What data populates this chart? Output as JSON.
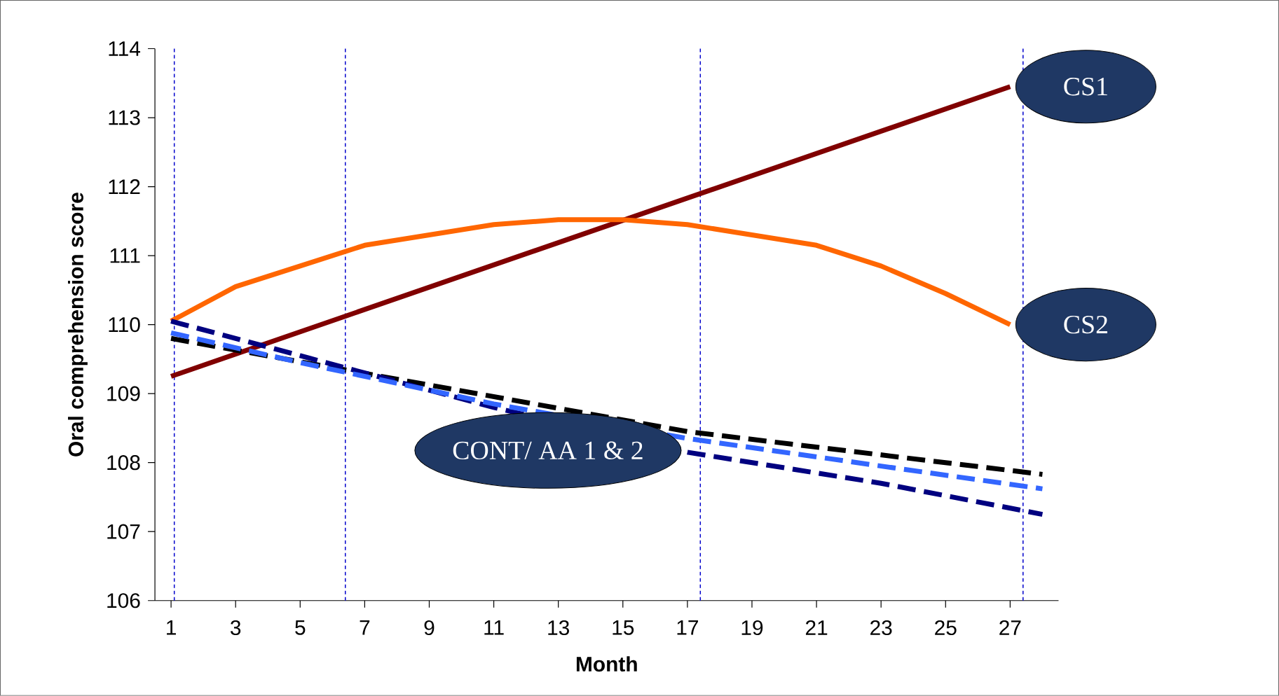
{
  "chart_data": {
    "type": "line",
    "xlabel": "Month",
    "ylabel": "Oral comprehension score",
    "xlim": [
      0.5,
      28.5
    ],
    "ylim": [
      106,
      114
    ],
    "xticks": [
      1,
      3,
      5,
      7,
      9,
      11,
      13,
      15,
      17,
      19,
      21,
      23,
      25,
      27
    ],
    "yticks": [
      106,
      107,
      108,
      109,
      110,
      111,
      112,
      113,
      114
    ],
    "grid": false,
    "line_style": "solid",
    "marker": "none",
    "series": [
      {
        "color": "#800000",
        "x": [
          1,
          14,
          27
        ],
        "values": [
          109.25,
          111.35,
          113.45
        ]
      },
      {
        "color": "#ff6600",
        "x": [
          1,
          3,
          5,
          7,
          9,
          11,
          13,
          15,
          17,
          19,
          21,
          23,
          25,
          27
        ],
        "values": [
          110.05,
          110.55,
          110.85,
          111.15,
          111.3,
          111.45,
          111.52,
          111.52,
          111.45,
          111.3,
          111.15,
          110.85,
          110.45,
          110.0
        ]
      },
      {
        "color": "#000000",
        "line_style": "dashed",
        "x": [
          1,
          17,
          28
        ],
        "values": [
          109.8,
          108.45,
          107.83
        ]
      },
      {
        "color": "#000080",
        "line_style": "dashed",
        "x": [
          1,
          5,
          11,
          17,
          23,
          28
        ],
        "values": [
          110.05,
          109.55,
          108.8,
          108.15,
          107.7,
          107.25
        ]
      },
      {
        "color": "#3366ff",
        "line_style": "dashed",
        "x": [
          1,
          5,
          11,
          17,
          23,
          28
        ],
        "values": [
          109.88,
          109.45,
          108.85,
          108.35,
          107.95,
          107.62
        ]
      }
    ],
    "ref_lines": [
      {
        "axis": "x",
        "value": 1.1,
        "color": "#0000cc",
        "line_style": "dashed"
      },
      {
        "axis": "x",
        "value": 6.4,
        "color": "#0000cc",
        "line_style": "dashed"
      },
      {
        "axis": "x",
        "value": 17.4,
        "color": "#0000cc",
        "line_style": "dashed"
      },
      {
        "axis": "x",
        "value": 27.4,
        "color": "#0000cc",
        "line_style": "dashed"
      }
    ],
    "annotations": [
      {
        "text": "CS1",
        "x": 27,
        "y": 113.45
      },
      {
        "text": "CS2",
        "x": 27,
        "y": 110.0
      },
      "CONT/ AA 1 & 2"
    ]
  }
}
